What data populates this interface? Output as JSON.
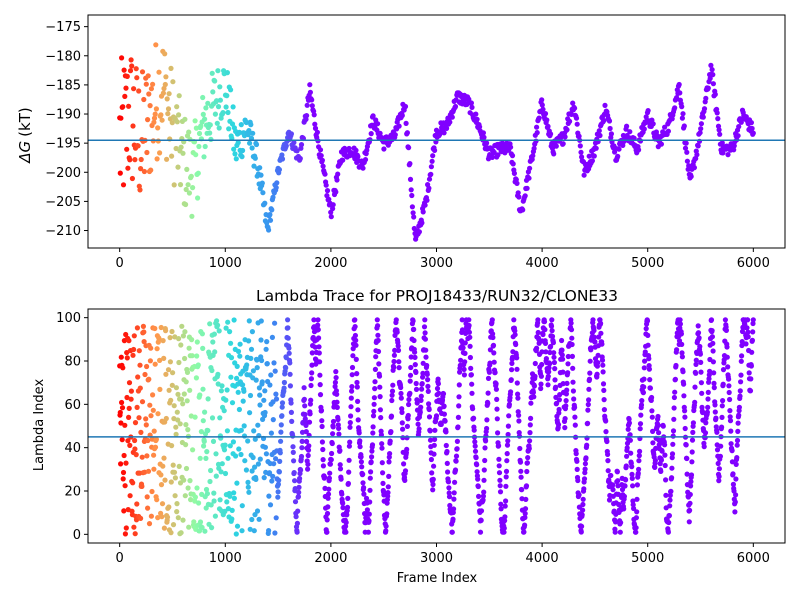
{
  "colors": {
    "series_gradient": [
      "#ff0000",
      "#ff9a4d",
      "#8ffba6",
      "#2dd6e0",
      "#3a8ef0",
      "#8000ff"
    ],
    "reference_line": "#1f77b4",
    "axis": "#000000"
  },
  "chart_data": [
    {
      "type": "scatter",
      "title": "",
      "ylabel_symbol": "ΔG",
      "ylabel_unit": "(kT)",
      "xlabel": "",
      "xlim": [
        -300,
        6300
      ],
      "ylim": [
        -213,
        -173
      ],
      "x_ticks": [
        0,
        1000,
        2000,
        3000,
        4000,
        5000,
        6000
      ],
      "x_tick_labels": [
        "0",
        "1000",
        "2000",
        "3000",
        "4000",
        "5000",
        "6000"
      ],
      "y_ticks": [
        -210,
        -205,
        -200,
        -195,
        -190,
        -185,
        -180,
        -175
      ],
      "y_tick_labels": [
        "−210",
        "−205",
        "−200",
        "−195",
        "−190",
        "−185",
        "−180",
        "−175"
      ],
      "reference_line_y": -194.5,
      "color_encoding": "frame index (rainbow, red at frame 0 to violet at later frames)",
      "trace_keypoints": {
        "x": [
          0,
          100,
          200,
          300,
          400,
          500,
          600,
          700,
          800,
          900,
          1000,
          1100,
          1200,
          1300,
          1400,
          1500,
          1600,
          1700,
          1800,
          1900,
          2000,
          2100,
          2200,
          2300,
          2400,
          2500,
          2600,
          2700,
          2800,
          2900,
          3000,
          3100,
          3200,
          3300,
          3400,
          3500,
          3600,
          3700,
          3800,
          3900,
          4000,
          4100,
          4200,
          4300,
          4400,
          4500,
          4600,
          4700,
          4800,
          4900,
          5000,
          5100,
          5200,
          5300,
          5400,
          5500,
          5600,
          5700,
          5800,
          5900,
          6000
        ],
        "y": [
          -195,
          -190,
          -195,
          -190,
          -185,
          -192,
          -198,
          -200,
          -192,
          -188,
          -185,
          -196,
          -192,
          -198,
          -210,
          -200,
          -193,
          -198,
          -186,
          -197,
          -207,
          -197,
          -196,
          -199,
          -191,
          -195,
          -194,
          -188,
          -212,
          -205,
          -193,
          -192,
          -187,
          -188,
          -192,
          -197,
          -196,
          -196,
          -207,
          -198,
          -188,
          -196,
          -194,
          -188,
          -200,
          -196,
          -189,
          -197,
          -193,
          -196,
          -190,
          -195,
          -192,
          -185,
          -202,
          -193,
          -182,
          -196,
          -196,
          -190,
          -193
        ]
      }
    },
    {
      "type": "scatter",
      "title": "Lambda Trace for PROJ18433/RUN32/CLONE33",
      "xlabel": "Frame Index",
      "ylabel": "Lambda Index",
      "xlim": [
        -300,
        6300
      ],
      "ylim": [
        -4,
        104
      ],
      "x_ticks": [
        0,
        1000,
        2000,
        3000,
        4000,
        5000,
        6000
      ],
      "x_tick_labels": [
        "0",
        "1000",
        "2000",
        "3000",
        "4000",
        "5000",
        "6000"
      ],
      "y_ticks": [
        0,
        20,
        40,
        60,
        80,
        100
      ],
      "y_tick_labels": [
        "0",
        "20",
        "40",
        "60",
        "80",
        "100"
      ],
      "reference_line_y": 45,
      "lambda_range": [
        0,
        99
      ],
      "color_encoding": "frame index (rainbow, red at frame 0 to violet at later frames)"
    }
  ]
}
